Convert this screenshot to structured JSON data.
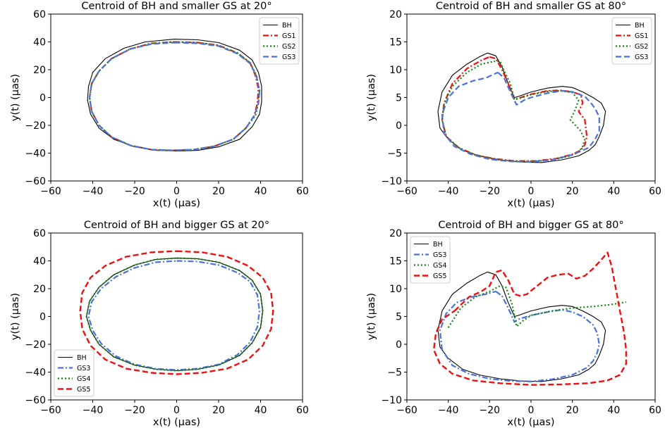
{
  "chart_data": [
    {
      "type": "line",
      "title": "Centroid of BH and smaller GS at 20°",
      "xlabel": "x(t) (μas)",
      "ylabel": "y(t) (μas)",
      "xlim": [
        -60,
        60
      ],
      "ylim": [
        -60,
        60
      ],
      "xticks": [
        -60,
        -40,
        -20,
        0,
        20,
        40,
        60
      ],
      "yticks": [
        -60,
        -40,
        -20,
        0,
        20,
        40,
        60
      ],
      "legend_position": "top-right",
      "series": [
        {
          "name": "BH",
          "color": "#000000",
          "style": "solid",
          "width": 1.1,
          "x": [
            -1,
            10,
            20,
            30,
            36,
            39,
            40.5,
            40.5,
            39.5,
            36,
            30,
            20,
            10,
            0,
            -10,
            -20,
            -30,
            -37,
            -41,
            -42.5,
            -42,
            -40,
            -34,
            -25,
            -15,
            -1
          ],
          "y": [
            42,
            41.5,
            39.5,
            34,
            27,
            18,
            8,
            -3,
            -12,
            -21,
            -30,
            -35.5,
            -38,
            -38.5,
            -38,
            -35.5,
            -30,
            -22,
            -12,
            -2,
            8,
            18,
            28,
            35.5,
            40,
            42
          ]
        },
        {
          "name": "GS1",
          "color": "#ee1111",
          "style": "dashdot",
          "width": 2.2,
          "x": [
            -1,
            10,
            20,
            29,
            35,
            37.5,
            39,
            38.5,
            37,
            33,
            27,
            18,
            8,
            -2,
            -12,
            -22,
            -31,
            -37,
            -40.5,
            -41.5,
            -40.5,
            -37,
            -31,
            -22,
            -12,
            -1
          ],
          "y": [
            40,
            39.5,
            37.5,
            32,
            25,
            16,
            6,
            -4,
            -13,
            -22,
            -30,
            -35,
            -37.5,
            -38,
            -37.5,
            -34.5,
            -28.5,
            -20,
            -10,
            0,
            10,
            19,
            28,
            35,
            39,
            40
          ]
        },
        {
          "name": "GS2",
          "color": "#118811",
          "style": "dotted",
          "width": 2.2,
          "x": [
            -1,
            10,
            20,
            29,
            35,
            38,
            39.5,
            39,
            37.5,
            33,
            27,
            18,
            8,
            -2,
            -12,
            -22,
            -31,
            -37,
            -40.5,
            -41.5,
            -40.5,
            -37,
            -31,
            -22,
            -12,
            -1
          ],
          "y": [
            40,
            39.5,
            37.5,
            32,
            25,
            16,
            5,
            -4,
            -13,
            -22,
            -30,
            -35,
            -37.5,
            -38,
            -37.5,
            -34.5,
            -28.5,
            -20,
            -10,
            0,
            10,
            19,
            28,
            35,
            39,
            40
          ]
        },
        {
          "name": "GS3",
          "color": "#4a72d8",
          "style": "dashed",
          "width": 2.2,
          "x": [
            -1,
            10,
            20,
            29,
            35,
            38,
            39.5,
            39,
            37,
            33,
            27,
            18,
            8,
            -2,
            -12,
            -22,
            -31,
            -37,
            -40.5,
            -41.5,
            -40.5,
            -37,
            -31,
            -22,
            -12,
            -1
          ],
          "y": [
            39.5,
            39,
            37,
            31.5,
            24.5,
            15.5,
            5,
            -4,
            -13,
            -22,
            -30,
            -35,
            -37.5,
            -38,
            -37.5,
            -34.5,
            -28.5,
            -20,
            -10,
            0,
            10,
            19,
            28,
            35,
            38.5,
            39.5
          ]
        }
      ]
    },
    {
      "type": "line",
      "title": "Centroid of BH and smaller GS at 80°",
      "xlabel": "x(t) (μas)",
      "ylabel": "y(t) (μas)",
      "xlim": [
        -60,
        60
      ],
      "ylim": [
        -10,
        20
      ],
      "xticks": [
        -60,
        -40,
        -20,
        0,
        20,
        40,
        60
      ],
      "yticks": [
        -10,
        -5,
        0,
        5,
        10,
        15,
        20
      ],
      "legend_position": "top-right",
      "series": [
        {
          "name": "BH",
          "color": "#000000",
          "style": "solid",
          "width": 1.1,
          "x": [
            -21,
            -17,
            -14,
            -11,
            -8,
            -6,
            0,
            8,
            15,
            20,
            25,
            30,
            34,
            36,
            35,
            33,
            31,
            28,
            23,
            15,
            5,
            -5,
            -15,
            -25,
            -33,
            -40,
            -44,
            -45,
            -43,
            -38,
            -31,
            -25,
            -21
          ],
          "y": [
            13,
            12.5,
            10.5,
            7.5,
            5,
            5.2,
            6,
            6.7,
            7,
            6.8,
            6,
            5,
            4,
            2.5,
            0,
            -2,
            -3.5,
            -4.5,
            -5.5,
            -6.2,
            -6.7,
            -6.6,
            -6.2,
            -5.5,
            -4.5,
            -2.5,
            -0.5,
            2.5,
            6,
            9,
            11,
            12.3,
            13
          ]
        },
        {
          "name": "GS1",
          "color": "#ee1111",
          "style": "dashdot",
          "width": 2.2,
          "x": [
            -20,
            -17,
            -14,
            -11,
            -8,
            -5,
            0,
            8,
            14,
            20,
            24,
            25,
            23,
            23,
            26,
            27,
            26,
            24,
            20,
            12,
            2,
            -8,
            -18,
            -27,
            -35,
            -41,
            -43,
            -42,
            -38,
            -31,
            -24,
            -20
          ],
          "y": [
            12.3,
            12,
            10,
            7.5,
            4.7,
            5,
            5.6,
            6.2,
            6.3,
            6,
            5.5,
            4,
            2.5,
            2.5,
            1,
            -2,
            -3.5,
            -4.5,
            -5.2,
            -6,
            -6.4,
            -6.4,
            -6,
            -5.3,
            -4,
            -2,
            1,
            4,
            7.5,
            10.2,
            11.7,
            12.3
          ]
        },
        {
          "name": "GS2",
          "color": "#118811",
          "style": "dotted",
          "width": 2.2,
          "x": [
            -18,
            -15,
            -13,
            -10,
            -8,
            -5,
            0,
            8,
            14,
            20,
            23,
            21,
            19,
            24,
            26,
            25,
            23,
            19,
            12,
            2,
            -8,
            -18,
            -27,
            -35,
            -41,
            -43,
            -42,
            -38,
            -31,
            -24,
            -18
          ],
          "y": [
            11.5,
            11.5,
            9.8,
            7.5,
            4.6,
            4.9,
            5.5,
            6.1,
            6.2,
            5.9,
            4.5,
            2.5,
            1,
            -1,
            -2.5,
            -3.8,
            -4.8,
            -5.5,
            -6.1,
            -6.5,
            -6.5,
            -6.1,
            -5.3,
            -4,
            -2,
            1,
            4,
            7,
            9.5,
            11,
            11.5
          ]
        },
        {
          "name": "GS3",
          "color": "#4a72d8",
          "style": "dashed",
          "width": 2.2,
          "x": [
            -16,
            -13,
            -10,
            -7,
            -3,
            0,
            8,
            15,
            20,
            26,
            29,
            31,
            33,
            33,
            31,
            28,
            20,
            10,
            0,
            -10,
            -20,
            -29,
            -37,
            -42,
            -43,
            -40,
            -35,
            -28,
            -22,
            -16
          ],
          "y": [
            9.5,
            8.5,
            6,
            3.7,
            4.6,
            5,
            5.8,
            6.2,
            6,
            5.2,
            4,
            3,
            1.5,
            -1,
            -2.5,
            -4,
            -5.3,
            -6.2,
            -6.6,
            -6.5,
            -6.1,
            -5.2,
            -3.8,
            -1.5,
            2,
            5,
            7,
            8,
            8.5,
            9.5
          ]
        }
      ]
    },
    {
      "type": "line",
      "title": "Centroid of BH and bigger GS at 20°",
      "xlabel": "x(t) (μas)",
      "ylabel": "y(t) (μas)",
      "xlim": [
        -60,
        60
      ],
      "ylim": [
        -60,
        60
      ],
      "xticks": [
        -60,
        -40,
        -20,
        0,
        20,
        40,
        60
      ],
      "yticks": [
        -60,
        -40,
        -20,
        0,
        20,
        40,
        60
      ],
      "legend_position": "lower-left",
      "series": [
        {
          "name": "BH",
          "color": "#000000",
          "style": "solid",
          "width": 1.1,
          "x": [
            0,
            10,
            20,
            30,
            36,
            40,
            41,
            40,
            36,
            30,
            20,
            10,
            0,
            -10,
            -20,
            -30,
            -37,
            -41,
            -43,
            -41.5,
            -37,
            -30,
            -20,
            -10,
            0
          ],
          "y": [
            42,
            41.5,
            39,
            33,
            26,
            16,
            4,
            -8,
            -19,
            -28,
            -35,
            -38,
            -39,
            -38,
            -35,
            -29,
            -20,
            -10,
            0,
            11,
            21,
            30,
            37,
            41,
            42
          ]
        },
        {
          "name": "GS3",
          "color": "#4a72d8",
          "style": "dashdot",
          "width": 2.2,
          "x": [
            0,
            10,
            20,
            29,
            35,
            38.5,
            39.5,
            38.5,
            35,
            29,
            20,
            10,
            0,
            -10,
            -20,
            -29,
            -36,
            -40,
            -42,
            -40.5,
            -36,
            -29,
            -20,
            -10,
            0
          ],
          "y": [
            40,
            39.5,
            37,
            31.5,
            25,
            15.5,
            4,
            -7.5,
            -18.5,
            -27.5,
            -34.5,
            -37.5,
            -38.5,
            -37.5,
            -34.5,
            -28.5,
            -19.5,
            -10,
            0,
            10.5,
            20,
            28.5,
            35,
            39,
            40
          ]
        },
        {
          "name": "GS4",
          "color": "#118811",
          "style": "dotted",
          "width": 2.2,
          "x": [
            0,
            10,
            20,
            30,
            36,
            40,
            41,
            40,
            36,
            30,
            20,
            10,
            0,
            -10,
            -20,
            -30,
            -37,
            -41,
            -43,
            -41.5,
            -37,
            -30,
            -20,
            -10,
            0
          ],
          "y": [
            42,
            41.5,
            39,
            33,
            26,
            16,
            4,
            -8,
            -19,
            -28,
            -35,
            -38,
            -39,
            -38,
            -35,
            -29,
            -20,
            -10,
            0,
            11,
            21,
            30,
            37,
            41,
            42
          ]
        },
        {
          "name": "GS5",
          "color": "#ee1111",
          "style": "dashed",
          "width": 2.4,
          "x": [
            0,
            12,
            24,
            34,
            41,
            45,
            46,
            45,
            41,
            34,
            24,
            12,
            0,
            -12,
            -24,
            -34,
            -41,
            -45,
            -46,
            -45,
            -41,
            -34,
            -24,
            -12,
            0
          ],
          "y": [
            47,
            46.2,
            43,
            36.5,
            28,
            17,
            4,
            -9,
            -21,
            -31,
            -37.5,
            -40.5,
            -41.5,
            -40.5,
            -37.5,
            -31,
            -21,
            -9,
            4,
            17,
            28,
            36.5,
            43,
            46.2,
            47
          ]
        }
      ]
    },
    {
      "type": "line",
      "title": "Centroid of BH and bigger GS at 80°",
      "xlabel": "x(t) (μas)",
      "ylabel": "y(t) (μas)",
      "xlim": [
        -60,
        60
      ],
      "ylim": [
        -10,
        20
      ],
      "xticks": [
        -60,
        -40,
        -20,
        0,
        20,
        40,
        60
      ],
      "yticks": [
        -10,
        -5,
        0,
        5,
        10,
        15,
        20
      ],
      "legend_position": "top-left",
      "series": [
        {
          "name": "BH",
          "color": "#000000",
          "style": "solid",
          "width": 1.1,
          "x": [
            -21,
            -17,
            -14,
            -11,
            -8,
            -6,
            0,
            8,
            15,
            20,
            25,
            30,
            34,
            36,
            35,
            33,
            31,
            28,
            23,
            15,
            5,
            -5,
            -15,
            -25,
            -33,
            -40,
            -44,
            -45,
            -43,
            -38,
            -31,
            -25,
            -21
          ],
          "y": [
            13,
            12.5,
            10.5,
            7.5,
            5,
            5.2,
            6,
            6.7,
            7,
            6.8,
            6,
            5,
            4,
            2.5,
            0,
            -2,
            -3.5,
            -4.5,
            -5.5,
            -6.2,
            -6.7,
            -6.6,
            -6.2,
            -5.5,
            -4.5,
            -2.5,
            -0.5,
            2.5,
            6,
            9,
            11,
            12.3,
            13
          ]
        },
        {
          "name": "GS3",
          "color": "#4a72d8",
          "style": "dashdot",
          "width": 2.2,
          "x": [
            -17,
            -14,
            -11,
            -8,
            -6,
            0,
            8,
            15,
            20,
            25,
            30,
            32,
            33,
            32,
            30,
            27,
            20,
            10,
            0,
            -10,
            -20,
            -30,
            -38,
            -43,
            -44,
            -41,
            -36,
            -29,
            -22,
            -17
          ],
          "y": [
            9.5,
            8.7,
            6.5,
            4,
            4.5,
            5.2,
            5.8,
            6.2,
            5.8,
            5,
            3.5,
            2,
            0,
            -1.5,
            -3,
            -4.2,
            -5.5,
            -6.3,
            -6.7,
            -6.6,
            -6.2,
            -5.3,
            -3.8,
            -1,
            2.5,
            5.5,
            7.5,
            8.5,
            9,
            9.5
          ]
        },
        {
          "name": "GS4",
          "color": "#118811",
          "style": "dotted",
          "width": 2.2,
          "x": [
            -40,
            -34,
            -27,
            -20,
            -15,
            -12,
            -9,
            -7,
            -4,
            0,
            10,
            20,
            30,
            38,
            46
          ],
          "y": [
            3,
            6.5,
            8.5,
            9.5,
            10.5,
            10.2,
            7,
            3.2,
            4.2,
            5.2,
            6,
            6.5,
            6.8,
            7.1,
            7.6
          ]
        },
        {
          "name": "GS5",
          "color": "#ee1111",
          "style": "dashed",
          "width": 2.4,
          "x": [
            -37,
            -30,
            -24,
            -20,
            -17,
            -14,
            -11,
            -8,
            -5,
            -2,
            3,
            8,
            13,
            18,
            22,
            26,
            30,
            34,
            37,
            39,
            41,
            43,
            45,
            46,
            46,
            43,
            37,
            28,
            15,
            0,
            -15,
            -28,
            -38,
            -44,
            -47,
            -46,
            -43,
            -37
          ],
          "y": [
            6,
            8.5,
            9.5,
            10.5,
            13,
            13.3,
            11.5,
            9,
            8.7,
            9,
            10.5,
            12,
            12.5,
            12.7,
            11.8,
            12.3,
            13.6,
            15.2,
            16.5,
            14,
            10,
            6,
            2,
            -1,
            -3.5,
            -5.5,
            -6.5,
            -7,
            -7.2,
            -7.3,
            -7,
            -6.5,
            -5.3,
            -3.5,
            -1,
            2,
            4.5,
            6
          ]
        }
      ]
    }
  ]
}
